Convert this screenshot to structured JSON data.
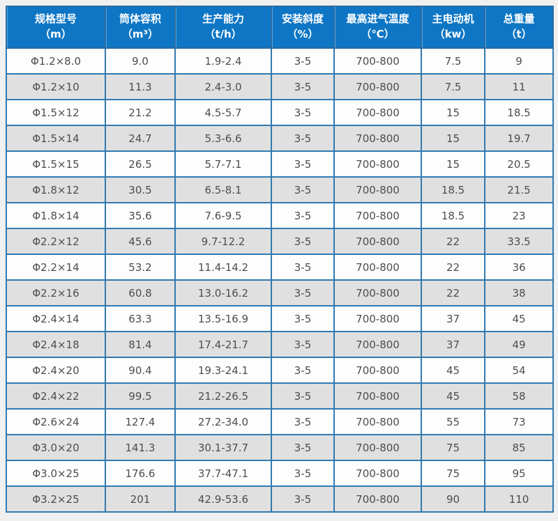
{
  "colors": {
    "page_bg": "#f0f0f0",
    "header_bg": "#0e76c5",
    "header_text": "#ffffff",
    "outer_border": "#2a6ca3",
    "cell_border": "#3279ae",
    "row_bg": "#fdfdfd",
    "row_alt_bg": "#e0e0e0",
    "text_color": "#4d4d4d"
  },
  "chart_data": {
    "type": "table",
    "title": "",
    "columns": [
      {
        "title": "规格型号",
        "unit": "（m）"
      },
      {
        "title": "筒体容积",
        "unit": "（m³）"
      },
      {
        "title": "生产能力",
        "unit": "（t/h）"
      },
      {
        "title": "安装斜度",
        "unit": "（%）"
      },
      {
        "title": "最高进气温度",
        "unit": "（℃）"
      },
      {
        "title": "主电动机",
        "unit": "（kw）"
      },
      {
        "title": "总重量",
        "unit": "（t）"
      }
    ],
    "rows": [
      [
        "Φ1.2×8.0",
        "9.0",
        "1.9-2.4",
        "3-5",
        "700-800",
        "7.5",
        "9"
      ],
      [
        "Φ1.2×10",
        "11.3",
        "2.4-3.0",
        "3-5",
        "700-800",
        "7.5",
        "11"
      ],
      [
        "Φ1.5×12",
        "21.2",
        "4.5-5.7",
        "3-5",
        "700-800",
        "15",
        "18.5"
      ],
      [
        "Φ1.5×14",
        "24.7",
        "5.3-6.6",
        "3-5",
        "700-800",
        "15",
        "19.7"
      ],
      [
        "Φ1.5×15",
        "26.5",
        "5.7-7.1",
        "3-5",
        "700-800",
        "15",
        "20.5"
      ],
      [
        "Φ1.8×12",
        "30.5",
        "6.5-8.1",
        "3-5",
        "700-800",
        "18.5",
        "21.5"
      ],
      [
        "Φ1.8×14",
        "35.6",
        "7.6-9.5",
        "3-5",
        "700-800",
        "18.5",
        "23"
      ],
      [
        "Φ2.2×12",
        "45.6",
        "9.7-12.2",
        "3-5",
        "700-800",
        "22",
        "33.5"
      ],
      [
        "Φ2.2×14",
        "53.2",
        "11.4-14.2",
        "3-5",
        "700-800",
        "22",
        "36"
      ],
      [
        "Φ2.2×16",
        "60.8",
        "13.0-16.2",
        "3-5",
        "700-800",
        "22",
        "38"
      ],
      [
        "Φ2.4×14",
        "63.3",
        "13.5-16.9",
        "3-5",
        "700-800",
        "37",
        "45"
      ],
      [
        "Φ2.4×18",
        "81.4",
        "17.4-21.7",
        "3-5",
        "700-800",
        "37",
        "49"
      ],
      [
        "Φ2.4×20",
        "90.4",
        "19.3-24.1",
        "3-5",
        "700-800",
        "45",
        "54"
      ],
      [
        "Φ2.4×22",
        "99.5",
        "21.2-26.5",
        "3-5",
        "700-800",
        "45",
        "58"
      ],
      [
        "Φ2.6×24",
        "127.4",
        "27.2-34.0",
        "3-5",
        "700-800",
        "55",
        "73"
      ],
      [
        "Φ3.0×20",
        "141.3",
        "30.1-37.7",
        "3-5",
        "700-800",
        "75",
        "85"
      ],
      [
        "Φ3.0×25",
        "176.6",
        "37.7-47.1",
        "3-5",
        "700-800",
        "75",
        "95"
      ],
      [
        "Φ3.2×25",
        "201",
        "42.9-53.6",
        "3-5",
        "700-800",
        "90",
        "110"
      ]
    ],
    "layout": {
      "stripe_pattern": "even rows shaded gray",
      "grid": "on",
      "header_rows": 1
    }
  }
}
